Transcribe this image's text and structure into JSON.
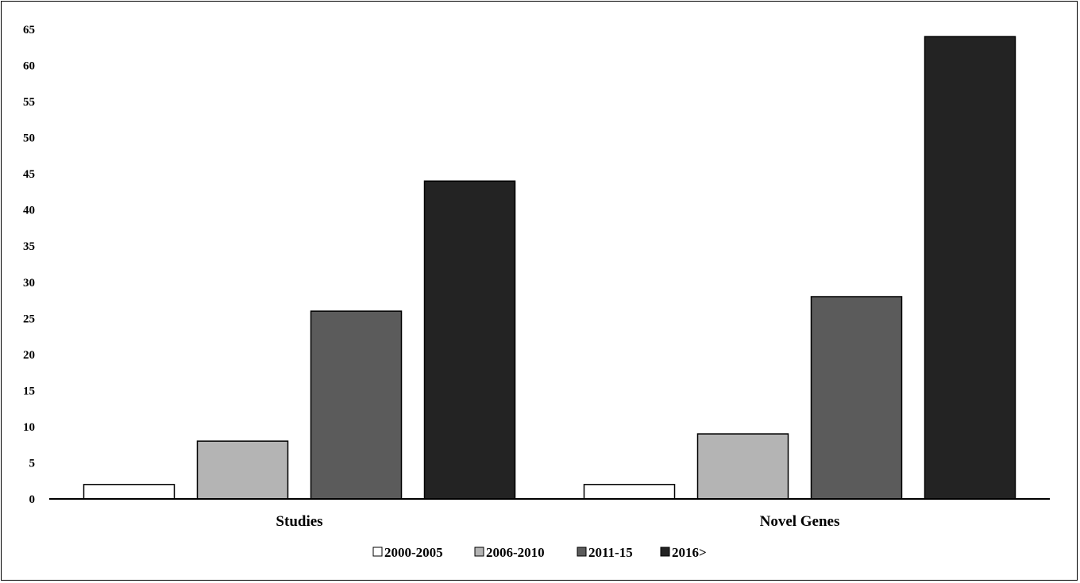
{
  "chart_data": {
    "type": "bar",
    "title": "",
    "xlabel": "",
    "ylabel": "",
    "categories": [
      "Studies",
      "Novel Genes"
    ],
    "series": [
      {
        "name": "2000-2005",
        "color": "#ffffff",
        "values": [
          2,
          2
        ]
      },
      {
        "name": "2006-2010",
        "color": "#b4b4b4",
        "values": [
          8,
          9
        ]
      },
      {
        "name": "2011-15",
        "color": "#5b5b5b",
        "values": [
          26,
          28
        ]
      },
      {
        "name": "2016>",
        "color": "#232323",
        "values": [
          44,
          64
        ]
      }
    ],
    "ylim": [
      0,
      65
    ],
    "yticks": [
      "0",
      "5",
      "10",
      "15",
      "20",
      "25",
      "30",
      "35",
      "40",
      "45",
      "50",
      "55",
      "60",
      "65"
    ],
    "grid": false,
    "legend_position": "bottom"
  }
}
